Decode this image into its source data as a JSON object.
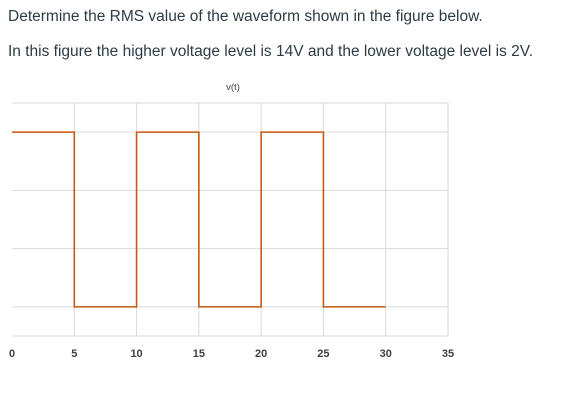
{
  "question": {
    "line1": "Determine the RMS value of the waveform shown in the figure below.",
    "line2": "In this figure the higher voltage level is 14V and the lower voltage level is 2V."
  },
  "chart_data": {
    "type": "line",
    "title": "v(t)",
    "xlabel": "",
    "ylabel": "",
    "xlim": [
      0,
      35
    ],
    "ylim": [
      0,
      16
    ],
    "x_ticks": [
      0,
      5,
      10,
      15,
      20,
      25,
      30,
      35
    ],
    "y_gridlines": [
      2,
      6,
      10,
      14,
      16
    ],
    "grid": true,
    "y_tick_labels_shown": false,
    "series": [
      {
        "color": "#c55a11",
        "points": [
          [
            0,
            14
          ],
          [
            5,
            14
          ],
          [
            5,
            2
          ],
          [
            10,
            2
          ],
          [
            10,
            14
          ],
          [
            15,
            14
          ],
          [
            15,
            2
          ],
          [
            20,
            2
          ],
          [
            20,
            14
          ],
          [
            25,
            14
          ],
          [
            25,
            2
          ],
          [
            30,
            2
          ]
        ]
      }
    ]
  }
}
